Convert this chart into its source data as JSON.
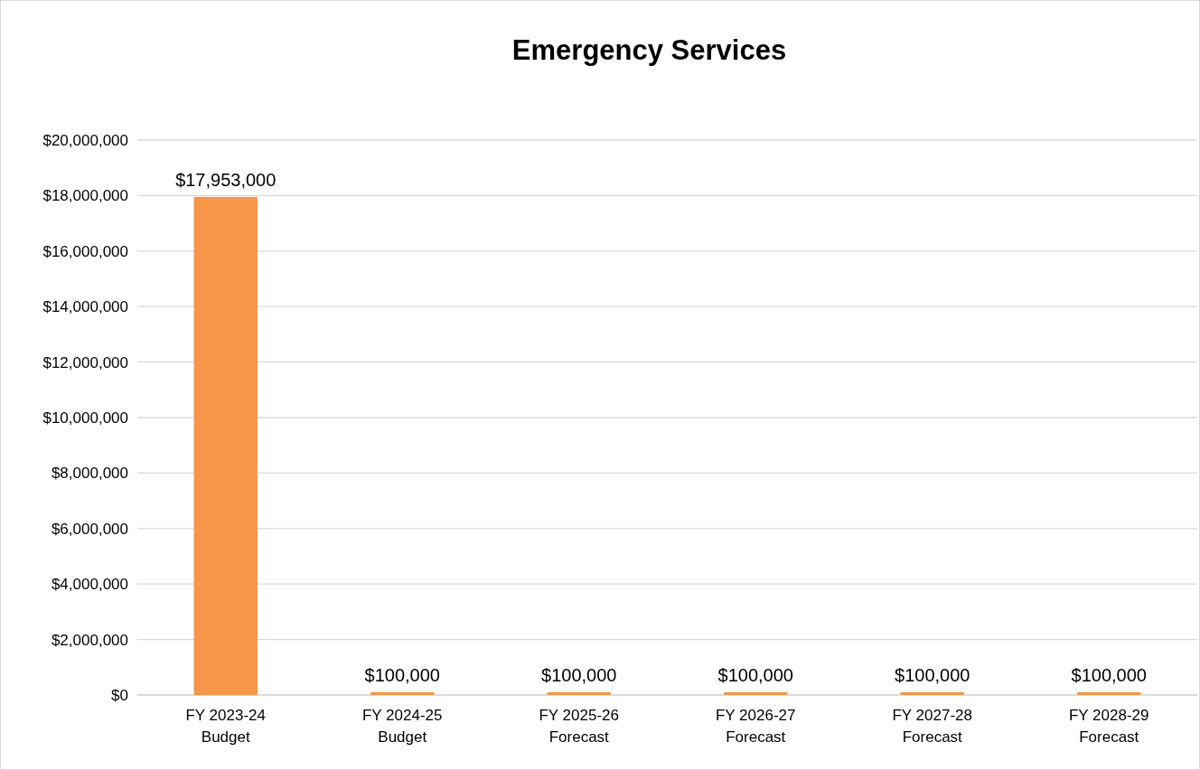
{
  "chart_data": {
    "type": "bar",
    "title": "Emergency Services",
    "categories": [
      "FY 2023-24 Budget",
      "FY 2024-25 Budget",
      "FY 2025-26 Forecast",
      "FY 2026-27 Forecast",
      "FY 2027-28 Forecast",
      "FY 2028-29 Forecast"
    ],
    "values": [
      17953000,
      100000,
      100000,
      100000,
      100000,
      100000
    ],
    "color": "#f79646",
    "ylim": [
      0,
      20000000
    ],
    "yticks": [
      {
        "value": 0,
        "label": "$0"
      },
      {
        "value": 2000000,
        "label": "$2,000,000"
      },
      {
        "value": 4000000,
        "label": "$4,000,000"
      },
      {
        "value": 6000000,
        "label": "$6,000,000"
      },
      {
        "value": 8000000,
        "label": "$8,000,000"
      },
      {
        "value": 10000000,
        "label": "$10,000,000"
      },
      {
        "value": 12000000,
        "label": "$12,000,000"
      },
      {
        "value": 14000000,
        "label": "$14,000,000"
      },
      {
        "value": 16000000,
        "label": "$16,000,000"
      },
      {
        "value": 18000000,
        "label": "$18,000,000"
      },
      {
        "value": 20000000,
        "label": "$20,000,000"
      }
    ],
    "grid": "y",
    "value_labels": [
      "$17,953,000",
      "$100,000",
      "$100,000",
      "$100,000",
      "$100,000",
      "$100,000"
    ]
  }
}
